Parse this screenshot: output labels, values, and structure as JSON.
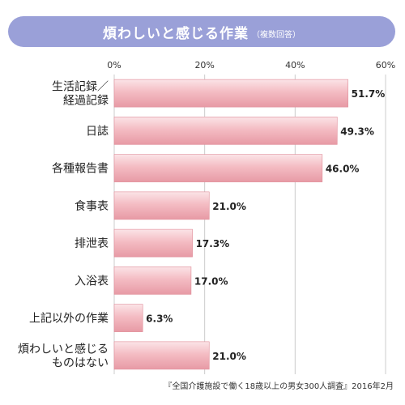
{
  "title": "煩わしいと感じる作業",
  "subtitle": "（複数回答）",
  "source": "『全国介護施設で働く18歳以上の男女300人調査』2016年2月",
  "chart_data": {
    "type": "bar",
    "orientation": "horizontal",
    "categories": [
      [
        "生活記録／",
        "経過記録"
      ],
      [
        "日誌"
      ],
      [
        "各種報告書"
      ],
      [
        "食事表"
      ],
      [
        "排泄表"
      ],
      [
        "入浴表"
      ],
      [
        "上記以外の作業"
      ],
      [
        "煩わしいと感じる",
        "ものはない"
      ]
    ],
    "values": [
      51.7,
      49.3,
      46.0,
      21.0,
      17.3,
      17.0,
      6.3,
      21.0
    ],
    "value_labels": [
      "51.7%",
      "49.3%",
      "46.0%",
      "21.0%",
      "17.3%",
      "17.0%",
      "6.3%",
      "21.0%"
    ],
    "xlim": [
      0,
      60
    ],
    "xticks": [
      0,
      20,
      40,
      60
    ],
    "xtick_labels": [
      "0%",
      "20%",
      "40%",
      "60%"
    ],
    "grid": true,
    "bar_color": "#f2b8bf",
    "bar_edge_color": "#e08c98"
  }
}
